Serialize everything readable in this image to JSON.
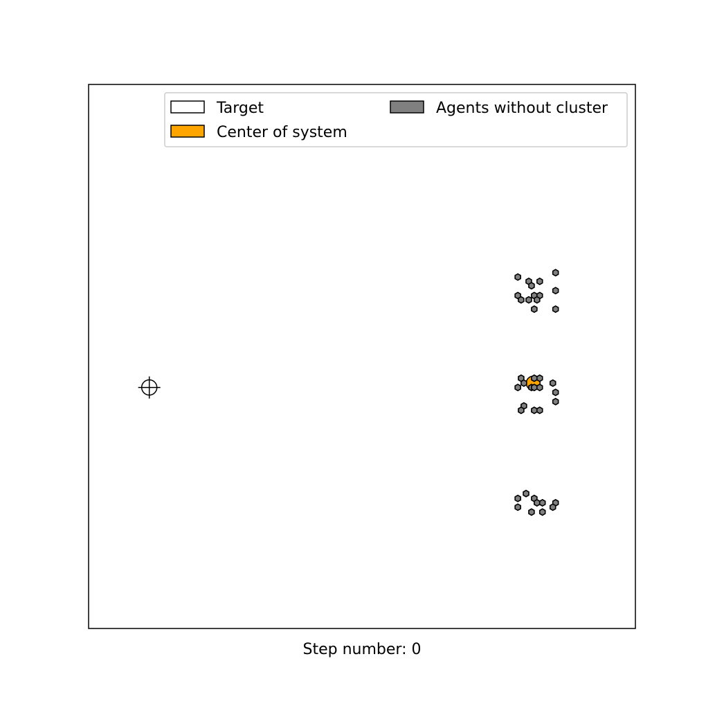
{
  "figure": {
    "step_label": "Step number: 0"
  },
  "legend": {
    "items": [
      {
        "label": "Target",
        "color": "#ffffff"
      },
      {
        "label": "Center of system",
        "color": "#ffa500"
      },
      {
        "label": "Agents without cluster",
        "color": "#808080"
      }
    ]
  },
  "chart_data": {
    "type": "scatter",
    "title": "",
    "xlabel": "",
    "ylabel": "",
    "xlim": [
      0,
      100
    ],
    "ylim": [
      0,
      100
    ],
    "ticks_visible": false,
    "grid": false,
    "legend_position": "upper-right",
    "colors": {
      "target": "#ffffff",
      "center": "#ffa500",
      "agents": "#808080",
      "edge": "#000000"
    },
    "target": {
      "x": 11.1,
      "y": 44.3
    },
    "center_of_system": {
      "x": 81.3,
      "y": 45.1
    },
    "agents_without_cluster": [
      {
        "x": 78.5,
        "y": 64.6
      },
      {
        "x": 80.5,
        "y": 63.8
      },
      {
        "x": 82.5,
        "y": 63.8
      },
      {
        "x": 85.4,
        "y": 65.4
      },
      {
        "x": 81.0,
        "y": 63.0
      },
      {
        "x": 85.4,
        "y": 62.1
      },
      {
        "x": 78.5,
        "y": 61.2
      },
      {
        "x": 81.5,
        "y": 61.2
      },
      {
        "x": 82.5,
        "y": 61.2
      },
      {
        "x": 79.1,
        "y": 60.4
      },
      {
        "x": 80.5,
        "y": 60.4
      },
      {
        "x": 82.0,
        "y": 60.4
      },
      {
        "x": 81.5,
        "y": 58.7
      },
      {
        "x": 85.4,
        "y": 58.7
      },
      {
        "x": 79.1,
        "y": 46.0
      },
      {
        "x": 81.5,
        "y": 46.0
      },
      {
        "x": 82.5,
        "y": 46.0
      },
      {
        "x": 79.6,
        "y": 45.1
      },
      {
        "x": 84.9,
        "y": 45.1
      },
      {
        "x": 81.0,
        "y": 44.3
      },
      {
        "x": 78.5,
        "y": 44.3
      },
      {
        "x": 81.5,
        "y": 44.3
      },
      {
        "x": 82.5,
        "y": 44.3
      },
      {
        "x": 85.4,
        "y": 43.4
      },
      {
        "x": 85.4,
        "y": 41.7
      },
      {
        "x": 79.6,
        "y": 40.9
      },
      {
        "x": 79.1,
        "y": 40.1
      },
      {
        "x": 81.5,
        "y": 40.1
      },
      {
        "x": 82.5,
        "y": 40.1
      },
      {
        "x": 80.0,
        "y": 24.8
      },
      {
        "x": 78.5,
        "y": 23.9
      },
      {
        "x": 81.5,
        "y": 23.9
      },
      {
        "x": 82.0,
        "y": 23.1
      },
      {
        "x": 83.0,
        "y": 23.1
      },
      {
        "x": 85.4,
        "y": 23.1
      },
      {
        "x": 78.5,
        "y": 22.3
      },
      {
        "x": 84.9,
        "y": 22.3
      },
      {
        "x": 81.0,
        "y": 21.4
      },
      {
        "x": 83.0,
        "y": 21.4
      }
    ]
  }
}
